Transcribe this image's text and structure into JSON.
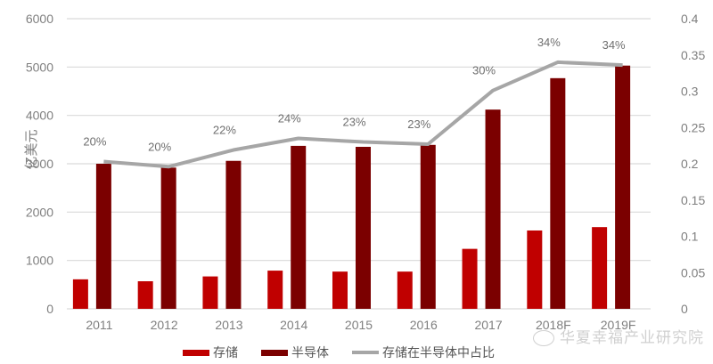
{
  "chart_data": {
    "type": "bar+line",
    "title": "",
    "ylabel": "亿美元",
    "ylabel_right": "",
    "xlabel": "",
    "ylim": [
      0,
      6000
    ],
    "ylim_right": [
      0,
      0.4
    ],
    "yticks": [
      "0",
      "1000",
      "2000",
      "3000",
      "4000",
      "5000",
      "6000"
    ],
    "yticks_right": [
      "0",
      "0.05",
      "0.1",
      "0.15",
      "0.2",
      "0.25",
      "0.3",
      "0.35",
      "0.4"
    ],
    "grid": true,
    "legend_position": "bottom",
    "categories": [
      "2011",
      "2012",
      "2013",
      "2014",
      "2015",
      "2016",
      "2017",
      "2018F",
      "2019F"
    ],
    "series": [
      {
        "name": "存储",
        "type": "bar",
        "axis": "left",
        "color": "#c00000",
        "values": [
          610,
          570,
          670,
          790,
          770,
          770,
          1240,
          1620,
          1690
        ]
      },
      {
        "name": "半导体",
        "type": "bar",
        "axis": "left",
        "color": "#7b0000",
        "values": [
          3000,
          2920,
          3060,
          3370,
          3350,
          3390,
          4120,
          4770,
          5030
        ]
      },
      {
        "name": "存储在半导体中占比",
        "type": "line",
        "axis": "right",
        "color": "#a6a6a6",
        "values": [
          0.203,
          0.196,
          0.219,
          0.235,
          0.23,
          0.227,
          0.301,
          0.34,
          0.336
        ],
        "labels": [
          "20%",
          "20%",
          "22%",
          "24%",
          "23%",
          "23%",
          "30%",
          "34%",
          "34%"
        ]
      }
    ]
  },
  "legend": {
    "items": [
      {
        "label": "存储",
        "color": "#c00000",
        "kind": "bar"
      },
      {
        "label": "半导体",
        "color": "#7b0000",
        "kind": "bar"
      },
      {
        "label": "存储在半导体中占比",
        "color": "#a6a6a6",
        "kind": "line"
      }
    ]
  },
  "watermark": {
    "text": "华夏幸福产业研究院",
    "icon": "wechat-icon"
  }
}
